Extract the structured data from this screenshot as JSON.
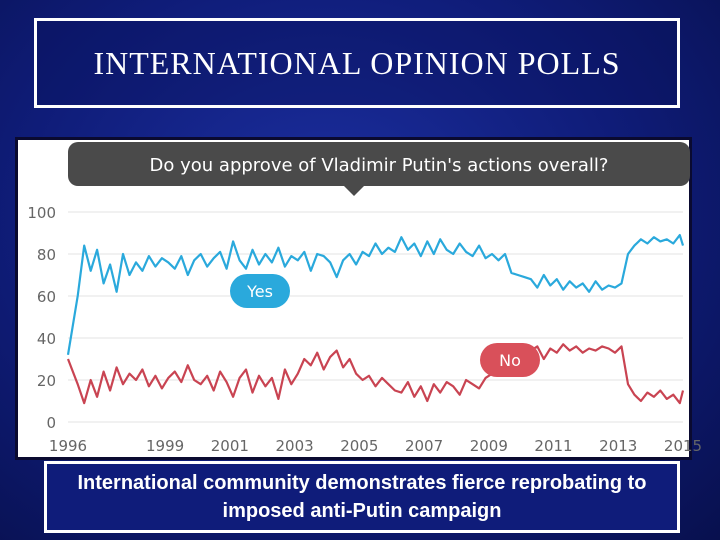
{
  "slide": {
    "title": "INTERNATIONAL OPINION POLLS",
    "caption": "International community demonstrates fierce reprobating to imposed anti-Putin campaign"
  },
  "colors": {
    "yes_series": "#2aa9dc",
    "no_series": "#c94452",
    "yes_bubble": "#2aa9dc",
    "no_bubble": "#d9505a",
    "question_bubble": "#4a4a4a"
  },
  "chart_data": {
    "type": "line",
    "title": "Do you approve of Vladimir Putin's actions overall?",
    "xlabel": "",
    "ylabel": "",
    "ylim": [
      0,
      100
    ],
    "xlim": [
      1996,
      2015
    ],
    "y_ticks": [
      "0",
      "20",
      "40",
      "60",
      "80",
      "100"
    ],
    "x_ticks": [
      "1996",
      "1999",
      "2001",
      "2003",
      "2005",
      "2007",
      "2009",
      "2011",
      "2013",
      "2015"
    ],
    "annotations": {
      "yes_label": "Yes",
      "no_label": "No"
    },
    "series": [
      {
        "name": "Yes",
        "x": [
          1996.0,
          1996.3,
          1996.5,
          1996.7,
          1996.9,
          1997.1,
          1997.3,
          1997.5,
          1997.7,
          1997.9,
          1998.1,
          1998.3,
          1998.5,
          1998.7,
          1998.9,
          1999.1,
          1999.3,
          1999.5,
          1999.7,
          1999.9,
          2000.1,
          2000.3,
          2000.5,
          2000.7,
          2000.9,
          2001.1,
          2001.3,
          2001.5,
          2001.7,
          2001.9,
          2002.1,
          2002.3,
          2002.5,
          2002.7,
          2002.9,
          2003.1,
          2003.3,
          2003.5,
          2003.7,
          2003.9,
          2004.1,
          2004.3,
          2004.5,
          2004.7,
          2004.9,
          2005.1,
          2005.3,
          2005.5,
          2005.7,
          2005.9,
          2006.1,
          2006.3,
          2006.5,
          2006.7,
          2006.9,
          2007.1,
          2007.3,
          2007.5,
          2007.7,
          2007.9,
          2008.1,
          2008.3,
          2008.5,
          2008.7,
          2008.9,
          2009.1,
          2009.3,
          2009.5,
          2009.7,
          2009.9,
          2010.1,
          2010.3,
          2010.5,
          2010.7,
          2010.9,
          2011.1,
          2011.3,
          2011.5,
          2011.7,
          2011.9,
          2012.1,
          2012.3,
          2012.5,
          2012.7,
          2012.9,
          2013.1,
          2013.3,
          2013.5,
          2013.7,
          2013.9,
          2014.1,
          2014.3,
          2014.5,
          2014.7,
          2014.9,
          2015.0
        ],
        "values": [
          32,
          60,
          84,
          72,
          82,
          66,
          75,
          62,
          80,
          70,
          76,
          72,
          79,
          74,
          78,
          76,
          73,
          79,
          70,
          77,
          80,
          74,
          78,
          81,
          73,
          86,
          77,
          73,
          82,
          75,
          80,
          76,
          83,
          74,
          79,
          77,
          81,
          72,
          80,
          79,
          76,
          69,
          77,
          80,
          75,
          81,
          79,
          85,
          80,
          83,
          81,
          88,
          82,
          85,
          79,
          86,
          80,
          87,
          82,
          80,
          85,
          81,
          79,
          84,
          78,
          80,
          77,
          80,
          71,
          70,
          69,
          68,
          64,
          70,
          65,
          68,
          63,
          67,
          64,
          66,
          62,
          67,
          63,
          65,
          64,
          66,
          80,
          84,
          87,
          85,
          88,
          86,
          87,
          85,
          89,
          84
        ]
      },
      {
        "name": "No",
        "x": [
          1996.0,
          1996.3,
          1996.5,
          1996.7,
          1996.9,
          1997.1,
          1997.3,
          1997.5,
          1997.7,
          1997.9,
          1998.1,
          1998.3,
          1998.5,
          1998.7,
          1998.9,
          1999.1,
          1999.3,
          1999.5,
          1999.7,
          1999.9,
          2000.1,
          2000.3,
          2000.5,
          2000.7,
          2000.9,
          2001.1,
          2001.3,
          2001.5,
          2001.7,
          2001.9,
          2002.1,
          2002.3,
          2002.5,
          2002.7,
          2002.9,
          2003.1,
          2003.3,
          2003.5,
          2003.7,
          2003.9,
          2004.1,
          2004.3,
          2004.5,
          2004.7,
          2004.9,
          2005.1,
          2005.3,
          2005.5,
          2005.7,
          2005.9,
          2006.1,
          2006.3,
          2006.5,
          2006.7,
          2006.9,
          2007.1,
          2007.3,
          2007.5,
          2007.7,
          2007.9,
          2008.1,
          2008.3,
          2008.5,
          2008.7,
          2008.9,
          2009.1,
          2009.3,
          2009.5,
          2009.7,
          2009.9,
          2010.1,
          2010.3,
          2010.5,
          2010.7,
          2010.9,
          2011.1,
          2011.3,
          2011.5,
          2011.7,
          2011.9,
          2012.1,
          2012.3,
          2012.5,
          2012.7,
          2012.9,
          2013.1,
          2013.3,
          2013.5,
          2013.7,
          2013.9,
          2014.1,
          2014.3,
          2014.5,
          2014.7,
          2014.9,
          2015.0
        ],
        "values": [
          30,
          18,
          9,
          20,
          12,
          24,
          15,
          26,
          18,
          23,
          20,
          25,
          17,
          22,
          16,
          21,
          24,
          19,
          27,
          20,
          18,
          22,
          15,
          24,
          19,
          12,
          21,
          25,
          14,
          22,
          17,
          21,
          11,
          25,
          18,
          23,
          30,
          27,
          33,
          25,
          31,
          34,
          26,
          30,
          23,
          20,
          22,
          17,
          21,
          18,
          15,
          14,
          19,
          12,
          17,
          10,
          18,
          14,
          19,
          17,
          13,
          20,
          18,
          16,
          21,
          23,
          24,
          30,
          27,
          33,
          31,
          34,
          36,
          30,
          35,
          33,
          37,
          34,
          36,
          33,
          35,
          34,
          36,
          35,
          33,
          36,
          18,
          13,
          10,
          14,
          12,
          15,
          11,
          13,
          9,
          15
        ]
      }
    ]
  }
}
